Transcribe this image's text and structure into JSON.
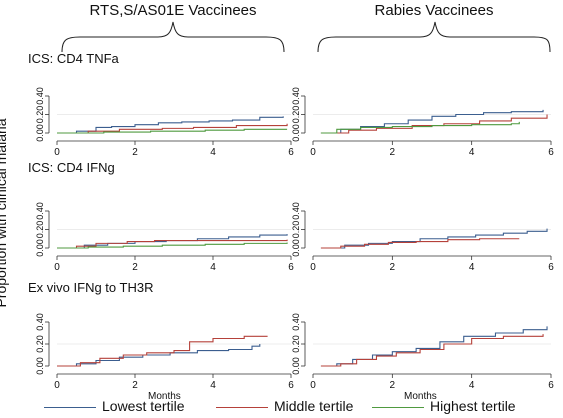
{
  "header": {
    "left_group": "RTS,S/AS01E Vaccinees",
    "right_group": "Rabies Vaccinees"
  },
  "y_axis_title": "Proportion with clinical malaria",
  "row_titles": [
    "ICS: CD4 TNFa",
    "ICS: CD4 IFNg",
    "Ex vivo IFNg to TH3R"
  ],
  "legend": {
    "items": [
      {
        "label": "Lowest tertile",
        "color": "#3b5e8f"
      },
      {
        "label": "Middle tertile",
        "color": "#b5413a"
      },
      {
        "label": "Highest tertile",
        "color": "#4f9a3f"
      }
    ]
  },
  "chart_data": [
    {
      "type": "line",
      "step": true,
      "group": "RTS,S/AS01E Vaccinees",
      "row": "ICS: CD4 TNFa",
      "xlabel": "",
      "ylabel": "",
      "xlim": [
        0,
        6
      ],
      "ylim": [
        0,
        0.4
      ],
      "xticks": [
        "0",
        "2",
        "4",
        "6"
      ],
      "yticks": [
        "0.00",
        "0.20",
        "0.40"
      ],
      "series": [
        {
          "name": "Lowest tertile",
          "x": [
            0,
            0.5,
            1.0,
            1.4,
            2.0,
            2.6,
            3.2,
            3.9,
            4.5,
            5.2,
            5.8
          ],
          "y": [
            0,
            0.02,
            0.06,
            0.07,
            0.09,
            0.11,
            0.12,
            0.13,
            0.14,
            0.17,
            0.18
          ]
        },
        {
          "name": "Middle tertile",
          "x": [
            0,
            0.8,
            1.6,
            2.7,
            3.5,
            4.6,
            5.9
          ],
          "y": [
            0,
            0.02,
            0.04,
            0.05,
            0.06,
            0.08,
            0.1
          ]
        },
        {
          "name": "Highest tertile",
          "x": [
            0,
            1.2,
            2.4,
            3.8,
            4.8,
            5.9
          ],
          "y": [
            0,
            0.01,
            0.02,
            0.03,
            0.04,
            0.04
          ]
        }
      ]
    },
    {
      "type": "line",
      "step": true,
      "group": "Rabies Vaccinees",
      "row": "ICS: CD4 TNFa",
      "xlabel": "",
      "ylabel": "",
      "xlim": [
        0,
        6
      ],
      "ylim": [
        0,
        0.4
      ],
      "xticks": [
        "0",
        "2",
        "4",
        "6"
      ],
      "yticks": [
        "0.00",
        "0.20",
        "0.40"
      ],
      "series": [
        {
          "name": "Lowest tertile",
          "x": [
            0.2,
            0.7,
            1.2,
            1.8,
            2.4,
            3.0,
            3.6,
            4.3,
            5.0,
            5.8
          ],
          "y": [
            0,
            0.04,
            0.07,
            0.1,
            0.14,
            0.18,
            0.2,
            0.22,
            0.23,
            0.25
          ]
        },
        {
          "name": "Middle tertile",
          "x": [
            0.2,
            0.9,
            1.6,
            2.5,
            3.3,
            4.2,
            5.0,
            5.9
          ],
          "y": [
            0,
            0.03,
            0.05,
            0.08,
            0.1,
            0.13,
            0.16,
            0.2
          ]
        },
        {
          "name": "Highest tertile",
          "x": [
            0.2,
            0.6,
            1.2,
            2.0,
            3.0,
            4.0,
            5.0,
            5.2
          ],
          "y": [
            0,
            0.04,
            0.06,
            0.07,
            0.08,
            0.09,
            0.1,
            0.12
          ]
        }
      ]
    },
    {
      "type": "line",
      "step": true,
      "group": "RTS,S/AS01E Vaccinees",
      "row": "ICS: CD4 IFNg",
      "xlabel": "",
      "ylabel": "",
      "xlim": [
        0,
        6
      ],
      "ylim": [
        0,
        0.4
      ],
      "xticks": [
        "0",
        "2",
        "4",
        "6"
      ],
      "yticks": [
        "0.00",
        "0.20",
        "0.40"
      ],
      "series": [
        {
          "name": "Lowest tertile",
          "x": [
            0,
            0.7,
            1.3,
            2.0,
            2.8,
            3.6,
            4.4,
            5.2,
            5.9
          ],
          "y": [
            0,
            0.03,
            0.05,
            0.07,
            0.08,
            0.1,
            0.12,
            0.14,
            0.15
          ]
        },
        {
          "name": "Middle tertile",
          "x": [
            0,
            0.5,
            1.0,
            1.8,
            2.5,
            3.5,
            4.6,
            5.9
          ],
          "y": [
            0,
            0.02,
            0.05,
            0.07,
            0.08,
            0.08,
            0.08,
            0.09
          ]
        },
        {
          "name": "Highest tertile",
          "x": [
            0,
            0.8,
            1.7,
            2.7,
            3.8,
            4.8,
            5.9
          ],
          "y": [
            0,
            0.01,
            0.02,
            0.03,
            0.04,
            0.05,
            0.06
          ]
        }
      ]
    },
    {
      "type": "line",
      "step": true,
      "group": "Rabies Vaccinees",
      "row": "ICS: CD4 IFNg",
      "xlabel": "",
      "ylabel": "",
      "xlim": [
        0,
        6
      ],
      "ylim": [
        0,
        0.4
      ],
      "xticks": [
        "0",
        "2",
        "4",
        "6"
      ],
      "yticks": [
        "0.00",
        "0.20",
        "0.40"
      ],
      "series": [
        {
          "name": "Lowest tertile",
          "x": [
            0.2,
            0.8,
            1.4,
            2.0,
            2.7,
            3.4,
            4.1,
            4.8,
            5.4,
            5.9
          ],
          "y": [
            0,
            0.03,
            0.05,
            0.07,
            0.1,
            0.12,
            0.14,
            0.16,
            0.18,
            0.21
          ]
        },
        {
          "name": "Middle tertile",
          "x": [
            0.2,
            0.7,
            1.3,
            1.9,
            2.6,
            3.4,
            4.2,
            5.2
          ],
          "y": [
            0,
            0.02,
            0.04,
            0.06,
            0.07,
            0.09,
            0.1,
            0.1
          ]
        }
      ]
    },
    {
      "type": "line",
      "step": true,
      "group": "RTS,S/AS01E Vaccinees",
      "row": "Ex vivo IFNg to TH3R",
      "xlabel": "Months",
      "ylabel": "",
      "xlim": [
        0,
        6
      ],
      "ylim": [
        0,
        0.4
      ],
      "xticks": [
        "0",
        "2",
        "4",
        "6"
      ],
      "yticks": [
        "0.00",
        "0.20",
        "0.40"
      ],
      "series": [
        {
          "name": "Lowest tertile",
          "x": [
            0,
            0.5,
            1.0,
            1.6,
            2.2,
            2.9,
            3.6,
            4.4,
            5.0,
            5.2
          ],
          "y": [
            0,
            0.02,
            0.05,
            0.08,
            0.1,
            0.12,
            0.14,
            0.15,
            0.18,
            0.2
          ]
        },
        {
          "name": "Middle tertile",
          "x": [
            0,
            0.6,
            1.1,
            1.7,
            2.3,
            3.0,
            3.4,
            4.0,
            4.8,
            5.4
          ],
          "y": [
            0,
            0.03,
            0.07,
            0.1,
            0.12,
            0.14,
            0.22,
            0.25,
            0.27,
            0.27
          ]
        }
      ]
    },
    {
      "type": "line",
      "step": true,
      "group": "Rabies Vaccinees",
      "row": "Ex vivo IFNg to TH3R",
      "xlabel": "Months",
      "ylabel": "",
      "xlim": [
        0,
        6
      ],
      "ylim": [
        0,
        0.4
      ],
      "xticks": [
        "0",
        "2",
        "4",
        "6"
      ],
      "yticks": [
        "0.00",
        "0.20",
        "0.40"
      ],
      "series": [
        {
          "name": "Lowest tertile",
          "x": [
            0.2,
            0.6,
            1.0,
            1.5,
            2.0,
            2.6,
            3.2,
            3.8,
            4.6,
            5.3,
            5.9
          ],
          "y": [
            0,
            0.02,
            0.06,
            0.1,
            0.13,
            0.16,
            0.22,
            0.27,
            0.3,
            0.33,
            0.36
          ]
        },
        {
          "name": "Middle tertile",
          "x": [
            0.2,
            0.7,
            1.1,
            1.6,
            2.1,
            2.7,
            3.3,
            4.0,
            4.8,
            5.8
          ],
          "y": [
            0,
            0.02,
            0.06,
            0.09,
            0.12,
            0.15,
            0.2,
            0.25,
            0.27,
            0.29
          ]
        }
      ]
    }
  ]
}
